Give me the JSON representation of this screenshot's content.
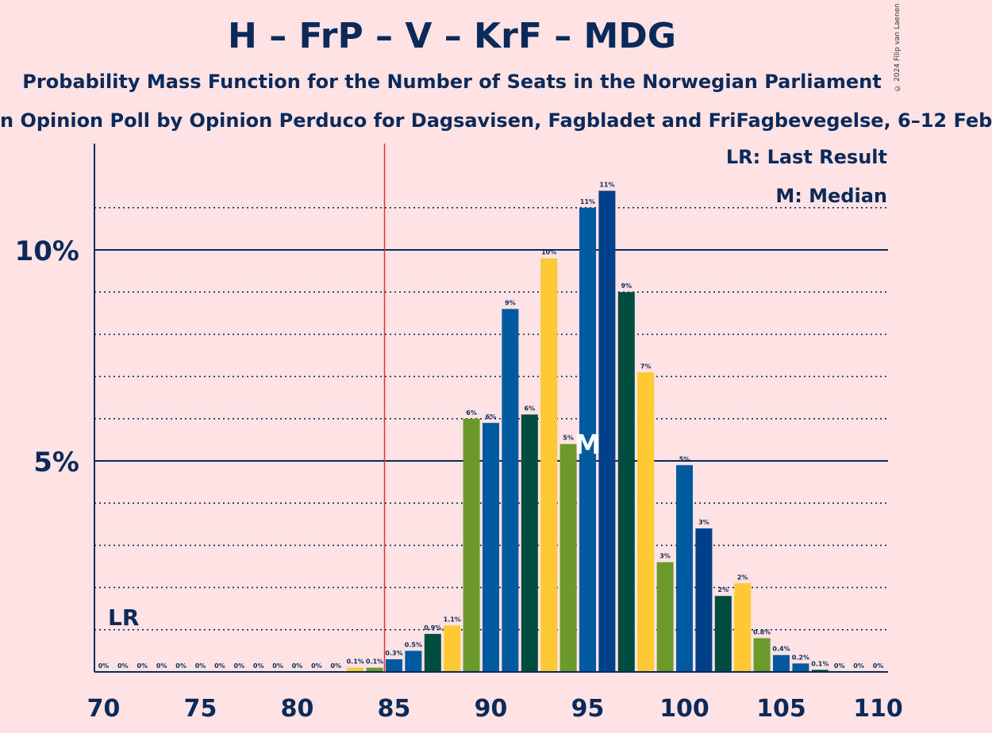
{
  "title": "H – FrP – V – KrF – MDG",
  "subtitle": "Probability Mass Function for the Number of Seats in the Norwegian Parliament",
  "subsubtitle": "n Opinion Poll by Opinion Perduco for Dagsavisen, Fagbladet and FriFagbevegelse, 6–12 Feb",
  "copyright": "© 2024 Filip van Laenen",
  "legend": {
    "last_result": "LR: Last Result",
    "median": "M: Median"
  },
  "markers": {
    "last_result_label": "LR",
    "median_label": "M"
  },
  "colors": {
    "background": "#ffe3e4",
    "text": "#0b2a5a",
    "last_result_line": "#e8302a",
    "bar_palette": [
      "#6b9a2a",
      "#005aa0",
      "#003f8a",
      "#004c3f",
      "#ffc933"
    ]
  },
  "chart_data": {
    "type": "bar",
    "xlabel": "",
    "ylabel": "",
    "x_range": [
      70,
      110
    ],
    "ylim": [
      0,
      12.5
    ],
    "x_ticks": [
      "70",
      "75",
      "80",
      "85",
      "90",
      "95",
      "100",
      "105",
      "110"
    ],
    "y_ticks": [
      {
        "value": 5,
        "label": "5%"
      },
      {
        "value": 10,
        "label": "10%"
      }
    ],
    "minor_gridlines": [
      1,
      2,
      3,
      4,
      6,
      7,
      8,
      9,
      11
    ],
    "last_result": 85,
    "median": 95,
    "bars": [
      {
        "seats": 70,
        "value": 0,
        "label": "0%",
        "color": "#004c3f"
      },
      {
        "seats": 71,
        "value": 0,
        "label": "0%",
        "color": "#ffc933"
      },
      {
        "seats": 72,
        "value": 0,
        "label": "0%",
        "color": "#6b9a2a"
      },
      {
        "seats": 73,
        "value": 0,
        "label": "0%",
        "color": "#005aa0"
      },
      {
        "seats": 74,
        "value": 0,
        "label": "0%",
        "color": "#003f8a"
      },
      {
        "seats": 75,
        "value": 0,
        "label": "0%",
        "color": "#004c3f"
      },
      {
        "seats": 76,
        "value": 0,
        "label": "0%",
        "color": "#ffc933"
      },
      {
        "seats": 77,
        "value": 0,
        "label": "0%",
        "color": "#6b9a2a"
      },
      {
        "seats": 78,
        "value": 0,
        "label": "0%",
        "color": "#005aa0"
      },
      {
        "seats": 79,
        "value": 0,
        "label": "0%",
        "color": "#003f8a"
      },
      {
        "seats": 80,
        "value": 0,
        "label": "0%",
        "color": "#004c3f"
      },
      {
        "seats": 81,
        "value": 0,
        "label": "0%",
        "color": "#ffc933"
      },
      {
        "seats": 82,
        "value": 0,
        "label": "0%",
        "color": "#6b9a2a"
      },
      {
        "seats": 83,
        "value": 0.1,
        "label": "0.1%",
        "color": "#ffc933"
      },
      {
        "seats": 84,
        "value": 0.1,
        "label": "0.1%",
        "color": "#6b9a2a"
      },
      {
        "seats": 85,
        "value": 0.3,
        "label": "0.3%",
        "color": "#005aa0"
      },
      {
        "seats": 86,
        "value": 0.5,
        "label": "0.5%",
        "color": "#005aa0"
      },
      {
        "seats": 87,
        "value": 0.9,
        "label": "0.9%",
        "color": "#004c3f"
      },
      {
        "seats": 88,
        "value": 1.1,
        "label": "1.1%",
        "color": "#ffc933"
      },
      {
        "seats": 89,
        "value": 6.0,
        "label": "6%",
        "color": "#6b9a2a"
      },
      {
        "seats": 90,
        "value": 5.9,
        "label": "6%",
        "color": "#005aa0"
      },
      {
        "seats": 91,
        "value": 8.6,
        "label": "9%",
        "color": "#005aa0"
      },
      {
        "seats": 92,
        "value": 6.1,
        "label": "6%",
        "color": "#004c3f"
      },
      {
        "seats": 93,
        "value": 9.8,
        "label": "10%",
        "color": "#ffc933"
      },
      {
        "seats": 94,
        "value": 5.4,
        "label": "5%",
        "color": "#6b9a2a"
      },
      {
        "seats": 95,
        "value": 11.0,
        "label": "11%",
        "color": "#005aa0"
      },
      {
        "seats": 96,
        "value": 11.4,
        "label": "11%",
        "color": "#003f8a"
      },
      {
        "seats": 97,
        "value": 9.0,
        "label": "9%",
        "color": "#004c3f"
      },
      {
        "seats": 98,
        "value": 7.1,
        "label": "7%",
        "color": "#ffc933"
      },
      {
        "seats": 99,
        "value": 2.6,
        "label": "3%",
        "color": "#6b9a2a"
      },
      {
        "seats": 100,
        "value": 4.9,
        "label": "5%",
        "color": "#005aa0"
      },
      {
        "seats": 101,
        "value": 3.4,
        "label": "3%",
        "color": "#003f8a"
      },
      {
        "seats": 102,
        "value": 1.8,
        "label": "2%",
        "color": "#004c3f"
      },
      {
        "seats": 103,
        "value": 2.1,
        "label": "2%",
        "color": "#ffc933"
      },
      {
        "seats": 104,
        "value": 0.8,
        "label": "0.8%",
        "color": "#6b9a2a"
      },
      {
        "seats": 105,
        "value": 0.4,
        "label": "0.4%",
        "color": "#005aa0"
      },
      {
        "seats": 106,
        "value": 0.2,
        "label": "0.2%",
        "color": "#005aa0"
      },
      {
        "seats": 107,
        "value": 0.05,
        "label": "0.1%",
        "color": "#004c3f"
      },
      {
        "seats": 108,
        "value": 0,
        "label": "0%",
        "color": "#ffc933"
      },
      {
        "seats": 109,
        "value": 0,
        "label": "0%",
        "color": "#6b9a2a"
      },
      {
        "seats": 110,
        "value": 0,
        "label": "0%",
        "color": "#005aa0"
      }
    ]
  }
}
